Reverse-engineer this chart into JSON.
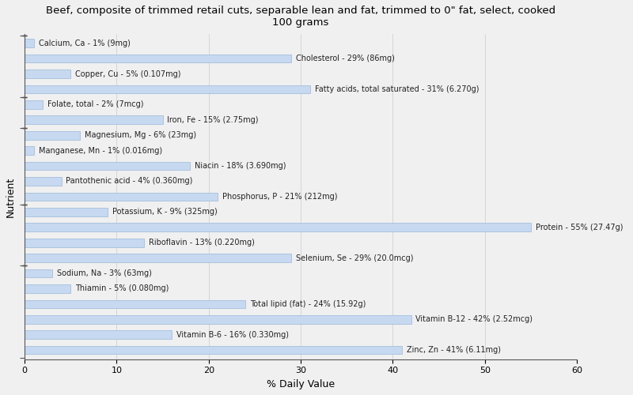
{
  "title": "Beef, composite of trimmed retail cuts, separable lean and fat, trimmed to 0\" fat, select, cooked\n100 grams",
  "xlabel": "% Daily Value",
  "ylabel": "Nutrient",
  "bar_color": "#c6d9f0",
  "bar_edge_color": "#9ab8d8",
  "background_color": "#f0f0f0",
  "plot_bg_color": "#f0f0f0",
  "xlim": [
    0,
    60
  ],
  "xticks": [
    0,
    10,
    20,
    30,
    40,
    50,
    60
  ],
  "nutrients": [
    {
      "label": "Calcium, Ca - 1% (9mg)",
      "value": 1
    },
    {
      "label": "Cholesterol - 29% (86mg)",
      "value": 29
    },
    {
      "label": "Copper, Cu - 5% (0.107mg)",
      "value": 5
    },
    {
      "label": "Fatty acids, total saturated - 31% (6.270g)",
      "value": 31
    },
    {
      "label": "Folate, total - 2% (7mcg)",
      "value": 2
    },
    {
      "label": "Iron, Fe - 15% (2.75mg)",
      "value": 15
    },
    {
      "label": "Magnesium, Mg - 6% (23mg)",
      "value": 6
    },
    {
      "label": "Manganese, Mn - 1% (0.016mg)",
      "value": 1
    },
    {
      "label": "Niacin - 18% (3.690mg)",
      "value": 18
    },
    {
      "label": "Pantothenic acid - 4% (0.360mg)",
      "value": 4
    },
    {
      "label": "Phosphorus, P - 21% (212mg)",
      "value": 21
    },
    {
      "label": "Potassium, K - 9% (325mg)",
      "value": 9
    },
    {
      "label": "Protein - 55% (27.47g)",
      "value": 55
    },
    {
      "label": "Riboflavin - 13% (0.220mg)",
      "value": 13
    },
    {
      "label": "Selenium, Se - 29% (20.0mcg)",
      "value": 29
    },
    {
      "label": "Sodium, Na - 3% (63mg)",
      "value": 3
    },
    {
      "label": "Thiamin - 5% (0.080mg)",
      "value": 5
    },
    {
      "label": "Total lipid (fat) - 24% (15.92g)",
      "value": 24
    },
    {
      "label": "Vitamin B-12 - 42% (2.52mcg)",
      "value": 42
    },
    {
      "label": "Vitamin B-6 - 16% (0.330mg)",
      "value": 16
    },
    {
      "label": "Zinc, Zn - 41% (6.11mg)",
      "value": 41
    }
  ],
  "ytick_groups": [
    0,
    4,
    7,
    11,
    15,
    20
  ],
  "title_fontsize": 9.5,
  "label_fontsize": 7,
  "axis_label_fontsize": 9,
  "tick_fontsize": 8
}
